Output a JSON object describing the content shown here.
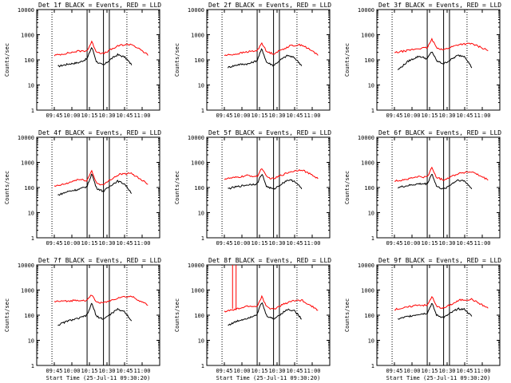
{
  "colors": {
    "events": "#000000",
    "lld": "#ff0000",
    "background": "#ffffff"
  },
  "panel_common": {
    "ylabel": "Counts/sec",
    "xlabel": "Start Time (25-Jul-11 09:30:20)",
    "y_ticks": [
      "1",
      "10",
      "100",
      "1000",
      "10000"
    ],
    "x_ticks": [
      "09:45",
      "10:00",
      "10:15",
      "10:30",
      "10:45",
      "11:00"
    ],
    "scale": "log",
    "ylim": [
      1,
      10000
    ],
    "xlim_hours": [
      9.5,
      11.25
    ]
  },
  "panels": [
    {
      "title": "Det 1f BLACK = Events, RED = LLD"
    },
    {
      "title": "Det 2f BLACK = Events, RED = LLD"
    },
    {
      "title": "Det 3f BLACK = Events, RED = LLD"
    },
    {
      "title": "Det 4f BLACK = Events, RED = LLD"
    },
    {
      "title": "Det 5f BLACK = Events, RED = LLD"
    },
    {
      "title": "Det 6f BLACK = Events, RED = LLD"
    },
    {
      "title": "Det 7f BLACK = Events, RED = LLD"
    },
    {
      "title": "Det 8f BLACK = Events, RED = LLD"
    },
    {
      "title": "Det 9f BLACK = Events, RED = LLD"
    }
  ],
  "chart_data": [
    {
      "type": "line",
      "title": "Det 1f BLACK = Events, RED = LLD",
      "ylabel": "Counts/sec",
      "xlabel": "",
      "y_scale": "log",
      "ylim": [
        1,
        10000
      ],
      "series": [
        {
          "name": "Events",
          "x": [
            "09:48",
            "09:57",
            "10:06",
            "10:13",
            "10:17",
            "10:21",
            "10:27",
            "10:33",
            "10:39",
            "10:45",
            "10:51"
          ],
          "values": [
            55,
            68,
            78,
            110,
            330,
            85,
            60,
            105,
            160,
            130,
            65
          ]
        },
        {
          "name": "LLD",
          "x": [
            "09:45",
            "09:55",
            "10:05",
            "10:13",
            "10:17",
            "10:21",
            "10:27",
            "10:33",
            "10:41",
            "10:51",
            "11:05"
          ],
          "values": [
            150,
            180,
            220,
            230,
            520,
            210,
            175,
            250,
            380,
            420,
            160
          ]
        }
      ]
    },
    {
      "type": "line",
      "title": "Det 2f BLACK = Events, RED = LLD",
      "ylabel": "Counts/sec",
      "xlabel": "",
      "y_scale": "log",
      "ylim": [
        1,
        10000
      ],
      "series": [
        {
          "name": "Events",
          "x": [
            "09:48",
            "09:57",
            "10:06",
            "10:13",
            "10:17",
            "10:21",
            "10:27",
            "10:33",
            "10:39",
            "10:45",
            "10:51"
          ],
          "values": [
            50,
            65,
            70,
            95,
            280,
            80,
            60,
            100,
            150,
            120,
            60
          ]
        },
        {
          "name": "LLD",
          "x": [
            "09:45",
            "09:55",
            "10:05",
            "10:13",
            "10:17",
            "10:21",
            "10:27",
            "10:33",
            "10:41",
            "10:51",
            "11:05"
          ],
          "values": [
            150,
            170,
            210,
            230,
            480,
            210,
            175,
            240,
            360,
            400,
            160
          ]
        }
      ]
    },
    {
      "type": "line",
      "title": "Det 3f BLACK = Events, RED = LLD",
      "ylabel": "Counts/sec",
      "xlabel": "",
      "y_scale": "log",
      "ylim": [
        1,
        10000
      ],
      "series": [
        {
          "name": "Events",
          "x": [
            "09:48",
            "09:57",
            "10:06",
            "10:13",
            "10:17",
            "10:21",
            "10:27",
            "10:33",
            "10:39",
            "10:45",
            "10:51"
          ],
          "values": [
            40,
            90,
            140,
            110,
            220,
            90,
            70,
            100,
            150,
            140,
            50
          ]
        },
        {
          "name": "LLD",
          "x": [
            "09:45",
            "09:55",
            "10:05",
            "10:13",
            "10:17",
            "10:21",
            "10:27",
            "10:33",
            "10:41",
            "10:51",
            "11:05"
          ],
          "values": [
            190,
            230,
            280,
            300,
            650,
            310,
            250,
            320,
            420,
            440,
            240
          ]
        }
      ]
    },
    {
      "type": "line",
      "title": "Det 4f BLACK = Events, RED = LLD",
      "ylabel": "Counts/sec",
      "xlabel": "",
      "y_scale": "log",
      "ylim": [
        1,
        10000
      ],
      "series": [
        {
          "name": "Events",
          "x": [
            "09:48",
            "09:57",
            "10:06",
            "10:13",
            "10:17",
            "10:21",
            "10:27",
            "10:33",
            "10:39",
            "10:45",
            "10:51"
          ],
          "values": [
            50,
            70,
            85,
            110,
            360,
            95,
            70,
            120,
            180,
            140,
            60
          ]
        },
        {
          "name": "LLD",
          "x": [
            "09:45",
            "09:55",
            "10:05",
            "10:13",
            "10:17",
            "10:21",
            "10:27",
            "10:33",
            "10:41",
            "10:51",
            "11:05"
          ],
          "values": [
            110,
            140,
            210,
            190,
            470,
            150,
            125,
            210,
            340,
            360,
            140
          ]
        }
      ]
    },
    {
      "type": "line",
      "title": "Det 5f BLACK = Events, RED = LLD",
      "ylabel": "Counts/sec",
      "xlabel": "",
      "y_scale": "log",
      "ylim": [
        1,
        10000
      ],
      "series": [
        {
          "name": "Events",
          "x": [
            "09:48",
            "09:57",
            "10:06",
            "10:13",
            "10:17",
            "10:21",
            "10:27",
            "10:33",
            "10:39",
            "10:45",
            "10:51"
          ],
          "values": [
            90,
            110,
            130,
            140,
            360,
            110,
            85,
            130,
            200,
            180,
            90
          ]
        },
        {
          "name": "LLD",
          "x": [
            "09:45",
            "09:55",
            "10:05",
            "10:13",
            "10:17",
            "10:21",
            "10:27",
            "10:33",
            "10:41",
            "10:51",
            "11:05"
          ],
          "values": [
            220,
            250,
            300,
            270,
            600,
            260,
            220,
            300,
            420,
            520,
            230
          ]
        }
      ]
    },
    {
      "type": "line",
      "title": "Det 6f BLACK = Events, RED = LLD",
      "ylabel": "Counts/sec",
      "xlabel": "",
      "y_scale": "log",
      "ylim": [
        1,
        10000
      ],
      "series": [
        {
          "name": "Events",
          "x": [
            "09:48",
            "09:57",
            "10:06",
            "10:13",
            "10:17",
            "10:21",
            "10:27",
            "10:33",
            "10:39",
            "10:45",
            "10:51"
          ],
          "values": [
            100,
            120,
            140,
            140,
            360,
            110,
            85,
            130,
            200,
            180,
            90
          ]
        },
        {
          "name": "LLD",
          "x": [
            "09:45",
            "09:55",
            "10:05",
            "10:13",
            "10:17",
            "10:21",
            "10:27",
            "10:33",
            "10:41",
            "10:51",
            "11:05"
          ],
          "values": [
            180,
            210,
            270,
            260,
            620,
            250,
            200,
            270,
            380,
            420,
            200
          ]
        }
      ]
    },
    {
      "type": "line",
      "title": "Det 7f BLACK = Events, RED = LLD",
      "ylabel": "Counts/sec",
      "xlabel": "Start Time (25-Jul-11 09:30:20)",
      "y_scale": "log",
      "ylim": [
        1,
        10000
      ],
      "series": [
        {
          "name": "Events",
          "x": [
            "09:48",
            "09:57",
            "10:06",
            "10:13",
            "10:17",
            "10:21",
            "10:27",
            "10:33",
            "10:39",
            "10:45",
            "10:51"
          ],
          "values": [
            40,
            60,
            75,
            100,
            300,
            90,
            70,
            110,
            170,
            140,
            60
          ]
        },
        {
          "name": "LLD",
          "x": [
            "09:45",
            "09:55",
            "10:05",
            "10:13",
            "10:17",
            "10:21",
            "10:27",
            "10:33",
            "10:41",
            "10:51",
            "11:05"
          ],
          "values": [
            350,
            360,
            400,
            380,
            650,
            330,
            310,
            380,
            520,
            560,
            250
          ]
        }
      ]
    },
    {
      "type": "line",
      "title": "Det 8f BLACK = Events, RED = LLD",
      "ylabel": "Counts/sec",
      "xlabel": "Start Time (25-Jul-11 09:30:20)",
      "y_scale": "log",
      "ylim": [
        1,
        10000
      ],
      "series": [
        {
          "name": "Events",
          "x": [
            "09:48",
            "09:57",
            "10:06",
            "10:13",
            "10:17",
            "10:21",
            "10:27",
            "10:33",
            "10:39",
            "10:45",
            "10:51"
          ],
          "values": [
            40,
            60,
            80,
            110,
            330,
            95,
            70,
            110,
            170,
            150,
            70
          ]
        },
        {
          "name": "LLD",
          "x": [
            "09:45",
            "09:55",
            "10:05",
            "10:13",
            "10:17",
            "10:21",
            "10:27",
            "10:33",
            "10:41",
            "10:51",
            "11:05"
          ],
          "values": [
            140,
            170,
            230,
            220,
            560,
            210,
            170,
            240,
            350,
            400,
            160
          ]
        }
      ],
      "annotations": [
        "LLD spike to >10000 near 09:52-09:55"
      ]
    },
    {
      "type": "line",
      "title": "Det 9f BLACK = Events, RED = LLD",
      "ylabel": "Counts/sec",
      "xlabel": "Start Time (25-Jul-11 09:30:20)",
      "y_scale": "log",
      "ylim": [
        1,
        10000
      ],
      "series": [
        {
          "name": "Events",
          "x": [
            "09:48",
            "09:57",
            "10:06",
            "10:13",
            "10:17",
            "10:21",
            "10:27",
            "10:33",
            "10:39",
            "10:45",
            "10:51"
          ],
          "values": [
            70,
            90,
            110,
            120,
            300,
            100,
            80,
            120,
            180,
            170,
            90
          ]
        },
        {
          "name": "LLD",
          "x": [
            "09:45",
            "09:55",
            "10:05",
            "10:13",
            "10:17",
            "10:21",
            "10:27",
            "10:33",
            "10:41",
            "10:51",
            "11:05"
          ],
          "values": [
            170,
            200,
            260,
            240,
            560,
            220,
            190,
            260,
            400,
            430,
            190
          ]
        }
      ]
    }
  ],
  "markers": {
    "dotted_times": [
      "09:43",
      "10:47"
    ],
    "solid_times": [
      "10:13",
      "10:27",
      "10:32"
    ]
  }
}
